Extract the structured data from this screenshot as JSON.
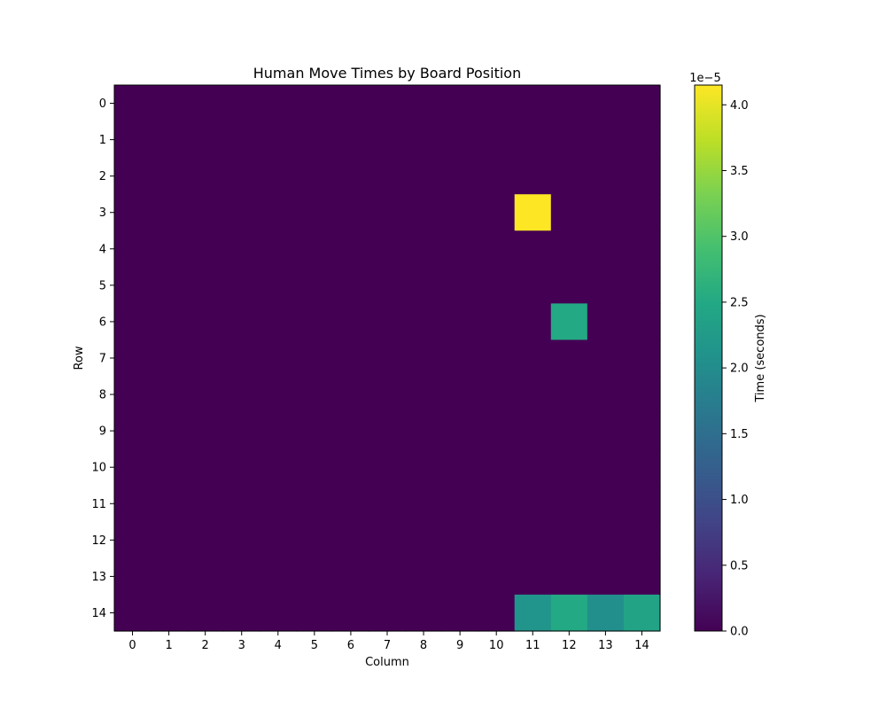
{
  "chart_data": {
    "type": "heatmap",
    "title": "Human Move Times by Board Position",
    "xlabel": "Column",
    "ylabel": "Row",
    "x_ticks": [
      "0",
      "1",
      "2",
      "3",
      "4",
      "5",
      "6",
      "7",
      "8",
      "9",
      "10",
      "11",
      "12",
      "13",
      "14"
    ],
    "y_ticks": [
      "0",
      "1",
      "2",
      "3",
      "4",
      "5",
      "6",
      "7",
      "8",
      "9",
      "10",
      "11",
      "12",
      "13",
      "14"
    ],
    "rows": 15,
    "cols": 15,
    "colormap": "viridis",
    "background_value": 0.0,
    "cells": [
      {
        "row": 3,
        "col": 11,
        "value": 4.15e-05
      },
      {
        "row": 6,
        "col": 12,
        "value": 2.5e-05
      },
      {
        "row": 14,
        "col": 11,
        "value": 2.15e-05
      },
      {
        "row": 14,
        "col": 12,
        "value": 2.5e-05
      },
      {
        "row": 14,
        "col": 13,
        "value": 2.05e-05
      },
      {
        "row": 14,
        "col": 14,
        "value": 2.4e-05
      }
    ],
    "colorbar": {
      "label": "Time (seconds)",
      "exponent_label": "1e−5",
      "min": 0.0,
      "max": 4.15e-05,
      "ticks": [
        0.0,
        0.5,
        1.0,
        1.5,
        2.0,
        2.5,
        3.0,
        3.5,
        4.0
      ],
      "tick_labels": [
        "0.0",
        "0.5",
        "1.0",
        "1.5",
        "2.0",
        "2.5",
        "3.0",
        "3.5",
        "4.0"
      ],
      "tick_scale": 1e-05
    }
  }
}
